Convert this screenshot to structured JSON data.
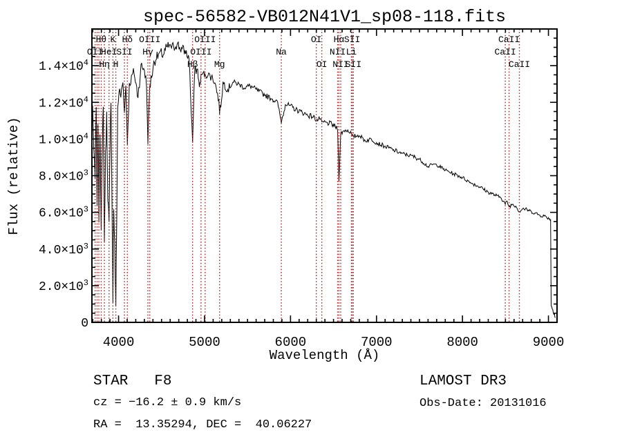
{
  "title": "spec-56582-VB012N41V1_sp08-118.fits",
  "annotations": {
    "class_label": "STAR   F8",
    "survey": "LAMOST DR3",
    "cz": "cz = −16.2 ± 0.9 km/s",
    "obs_date": "Obs-Date: 20131016",
    "coords": "RA =  13.35294, DEC =  40.06227"
  },
  "chart_data": {
    "type": "line",
    "title": "spec-56582-VB012N41V1_sp08-118.fits",
    "xlabel": "Wavelength (Å)",
    "ylabel": "Flux (relative)",
    "xlim": [
      3690,
      9100
    ],
    "ylim": [
      0,
      16000
    ],
    "grid": false,
    "spectrum_color": "#000000",
    "line_marker_color": "#9e2b2b",
    "x_ticks": [
      {
        "value": 4000,
        "label": "4000"
      },
      {
        "value": 5000,
        "label": "5000"
      },
      {
        "value": 6000,
        "label": "6000"
      },
      {
        "value": 7000,
        "label": "7000"
      },
      {
        "value": 8000,
        "label": "8000"
      },
      {
        "value": 9000,
        "label": "9000"
      }
    ],
    "x_minor_step": 100,
    "y_ticks": [
      {
        "value": 0,
        "base": "0",
        "exp": ""
      },
      {
        "value": 2000,
        "base": "2.0×10",
        "exp": "3"
      },
      {
        "value": 4000,
        "base": "4.0×10",
        "exp": "3"
      },
      {
        "value": 6000,
        "base": "6.0×10",
        "exp": "3"
      },
      {
        "value": 8000,
        "base": "8.0×10",
        "exp": "3"
      },
      {
        "value": 10000,
        "base": "1.0×10",
        "exp": "4"
      },
      {
        "value": 12000,
        "base": "1.2×10",
        "exp": "4"
      },
      {
        "value": 14000,
        "base": "1.4×10",
        "exp": "4"
      }
    ],
    "y_minor_step": 500,
    "spectral_lines": [
      {
        "label": "Hθ",
        "wavelength": 3798,
        "row": 1
      },
      {
        "label": "K",
        "wavelength": 3934,
        "row": 1
      },
      {
        "label": "Hδ",
        "wavelength": 4102,
        "row": 1
      },
      {
        "label": "OIII",
        "wavelength": 4363,
        "row": 1
      },
      {
        "label": "OIII",
        "wavelength": 5007,
        "row": 1
      },
      {
        "label": "OI",
        "wavelength": 6300,
        "row": 1
      },
      {
        "label": "Hα",
        "wavelength": 6563,
        "row": 1
      },
      {
        "label": "SII",
        "wavelength": 6717,
        "row": 1
      },
      {
        "label": "CaII",
        "wavelength": 8542,
        "row": 1
      },
      {
        "label": "OII",
        "wavelength": 3727,
        "row": 2
      },
      {
        "label": "HeI",
        "wavelength": 3889,
        "row": 2
      },
      {
        "label": "SII",
        "wavelength": 4068,
        "row": 2
      },
      {
        "label": "Hγ",
        "wavelength": 4341,
        "row": 2
      },
      {
        "label": "OIII",
        "wavelength": 4959,
        "row": 2
      },
      {
        "label": "Na",
        "wavelength": 5893,
        "row": 2
      },
      {
        "label": "NII",
        "wavelength": 6548,
        "row": 2
      },
      {
        "label": "Li",
        "wavelength": 6708,
        "row": 2
      },
      {
        "label": "CaII",
        "wavelength": 8498,
        "row": 2
      },
      {
        "label": "Hη",
        "wavelength": 3835,
        "row": 3
      },
      {
        "label": "H",
        "wavelength": 3968,
        "row": 3
      },
      {
        "label": "Hβ",
        "wavelength": 4861,
        "row": 3
      },
      {
        "label": "Mg",
        "wavelength": 5175,
        "row": 3
      },
      {
        "label": "OI",
        "wavelength": 6364,
        "row": 3
      },
      {
        "label": "NII",
        "wavelength": 6584,
        "row": 3
      },
      {
        "label": "SII",
        "wavelength": 6731,
        "row": 3
      },
      {
        "label": "CaII",
        "wavelength": 8662,
        "row": 3
      }
    ],
    "extra_line_wavelengths": [
      3750,
      3771
    ],
    "series": [
      {
        "name": "flux",
        "points_note": "anchor points [wavelength_A, flux_relative] read from plot"
      }
    ],
    "flux_points": [
      [
        3690,
        10200
      ],
      [
        3698,
        11900
      ],
      [
        3712,
        9300
      ],
      [
        3727,
        7800
      ],
      [
        3740,
        11600
      ],
      [
        3750,
        6200
      ],
      [
        3760,
        10900
      ],
      [
        3771,
        5600
      ],
      [
        3784,
        10400
      ],
      [
        3798,
        5000
      ],
      [
        3812,
        9800
      ],
      [
        3822,
        11900
      ],
      [
        3835,
        4400
      ],
      [
        3848,
        9200
      ],
      [
        3862,
        11400
      ],
      [
        3875,
        6800
      ],
      [
        3889,
        5400
      ],
      [
        3902,
        9800
      ],
      [
        3912,
        11900
      ],
      [
        3920,
        8500
      ],
      [
        3934,
        1200
      ],
      [
        3944,
        6200
      ],
      [
        3956,
        4300
      ],
      [
        3968,
        800
      ],
      [
        3980,
        6200
      ],
      [
        3990,
        11700
      ],
      [
        4005,
        12600
      ],
      [
        4026,
        12300
      ],
      [
        4050,
        13100
      ],
      [
        4068,
        11500
      ],
      [
        4085,
        12900
      ],
      [
        4102,
        9700
      ],
      [
        4125,
        13000
      ],
      [
        4150,
        13400
      ],
      [
        4180,
        13600
      ],
      [
        4226,
        12300
      ],
      [
        4260,
        14000
      ],
      [
        4300,
        13800
      ],
      [
        4325,
        12900
      ],
      [
        4341,
        9800
      ],
      [
        4363,
        12900
      ],
      [
        4385,
        13400
      ],
      [
        4410,
        14200
      ],
      [
        4440,
        14400
      ],
      [
        4480,
        14700
      ],
      [
        4520,
        14600
      ],
      [
        4560,
        15000
      ],
      [
        4600,
        15100
      ],
      [
        4640,
        15000
      ],
      [
        4680,
        15200
      ],
      [
        4710,
        15000
      ],
      [
        4740,
        14900
      ],
      [
        4780,
        14700
      ],
      [
        4820,
        14400
      ],
      [
        4861,
        9800
      ],
      [
        4885,
        13700
      ],
      [
        4920,
        13800
      ],
      [
        4940,
        12800
      ],
      [
        4959,
        13500
      ],
      [
        4985,
        13600
      ],
      [
        5007,
        13500
      ],
      [
        5040,
        13500
      ],
      [
        5080,
        13400
      ],
      [
        5120,
        13100
      ],
      [
        5167,
        12100
      ],
      [
        5175,
        11400
      ],
      [
        5190,
        11800
      ],
      [
        5215,
        13100
      ],
      [
        5270,
        12700
      ],
      [
        5330,
        13100
      ],
      [
        5400,
        13000
      ],
      [
        5460,
        12800
      ],
      [
        5530,
        12900
      ],
      [
        5600,
        12700
      ],
      [
        5700,
        12400
      ],
      [
        5780,
        12200
      ],
      [
        5850,
        12000
      ],
      [
        5893,
        10900
      ],
      [
        5940,
        11900
      ],
      [
        6000,
        11800
      ],
      [
        6060,
        11600
      ],
      [
        6120,
        11500
      ],
      [
        6200,
        11300
      ],
      [
        6280,
        11200
      ],
      [
        6300,
        11000
      ],
      [
        6340,
        11100
      ],
      [
        6364,
        10900
      ],
      [
        6420,
        10900
      ],
      [
        6480,
        10800
      ],
      [
        6520,
        10700
      ],
      [
        6548,
        10500
      ],
      [
        6563,
        7700
      ],
      [
        6584,
        10300
      ],
      [
        6640,
        10500
      ],
      [
        6700,
        10400
      ],
      [
        6717,
        10150
      ],
      [
        6731,
        10150
      ],
      [
        6800,
        10200
      ],
      [
        6870,
        9900
      ],
      [
        6940,
        10000
      ],
      [
        7000,
        9800
      ],
      [
        7100,
        9600
      ],
      [
        7200,
        9400
      ],
      [
        7300,
        9200
      ],
      [
        7400,
        9100
      ],
      [
        7500,
        8900
      ],
      [
        7600,
        8500
      ],
      [
        7650,
        8600
      ],
      [
        7700,
        8600
      ],
      [
        7800,
        8300
      ],
      [
        7900,
        8100
      ],
      [
        8000,
        7900
      ],
      [
        8100,
        7600
      ],
      [
        8200,
        7400
      ],
      [
        8300,
        7100
      ],
      [
        8400,
        6900
      ],
      [
        8450,
        6800
      ],
      [
        8498,
        6450
      ],
      [
        8520,
        6600
      ],
      [
        8542,
        6300
      ],
      [
        8580,
        6450
      ],
      [
        8620,
        6350
      ],
      [
        8662,
        6050
      ],
      [
        8700,
        6200
      ],
      [
        8750,
        6150
      ],
      [
        8800,
        6050
      ],
      [
        8850,
        5950
      ],
      [
        8900,
        5850
      ],
      [
        8950,
        5800
      ],
      [
        9000,
        5700
      ],
      [
        9015,
        5650
      ],
      [
        9025,
        5600
      ],
      [
        9032,
        900
      ],
      [
        9050,
        700
      ],
      [
        9070,
        450
      ],
      [
        9080,
        250
      ]
    ],
    "noise_profile": [
      [
        4000,
        650
      ],
      [
        4400,
        350
      ],
      [
        4900,
        300
      ],
      [
        5300,
        230
      ],
      [
        6500,
        150
      ],
      [
        7500,
        120
      ],
      [
        9200,
        100
      ]
    ]
  }
}
